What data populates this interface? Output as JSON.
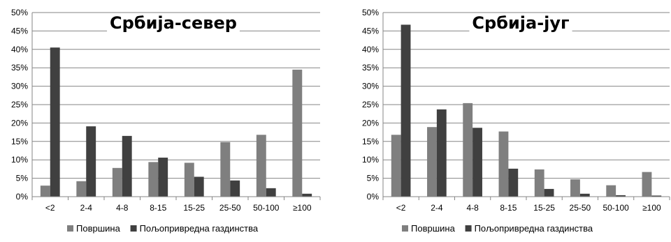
{
  "chart_data": [
    {
      "type": "bar",
      "title": "Србија-север",
      "categories": [
        "<2",
        "2-4",
        "4-8",
        "8-15",
        "15-25",
        "25-50",
        "50-100",
        "≥100"
      ],
      "series": [
        {
          "name": "Површина",
          "color": "#7f7f7f",
          "values": [
            3,
            4.2,
            7.8,
            9.4,
            9.2,
            14.8,
            16.8,
            34.5
          ]
        },
        {
          "name": "Пољопривредна газдинства",
          "color": "#404040",
          "values": [
            40.5,
            19.1,
            16.5,
            10.6,
            5.4,
            4.4,
            2.3,
            0.8
          ]
        }
      ],
      "ylim": [
        0,
        50
      ],
      "yticks": [
        "0%",
        "5%",
        "10%",
        "15%",
        "20%",
        "25%",
        "30%",
        "35%",
        "40%",
        "45%",
        "50%"
      ],
      "grid": true,
      "legend": "bottom"
    },
    {
      "type": "bar",
      "title": "Србија-југ",
      "categories": [
        "<2",
        "2-4",
        "4-8",
        "8-15",
        "15-25",
        "25-50",
        "50-100",
        "≥100"
      ],
      "series": [
        {
          "name": "Површина",
          "color": "#7f7f7f",
          "values": [
            16.8,
            18.9,
            25.4,
            17.7,
            7.4,
            4.7,
            3.1,
            6.7
          ]
        },
        {
          "name": "Пољопривредна газдинства",
          "color": "#404040",
          "values": [
            46.7,
            23.7,
            18.7,
            7.6,
            2.1,
            0.8,
            0.4,
            0.3
          ]
        }
      ],
      "ylim": [
        0,
        50
      ],
      "yticks": [
        "0%",
        "5%",
        "10%",
        "15%",
        "20%",
        "25%",
        "30%",
        "35%",
        "40%",
        "45%",
        "50%"
      ],
      "grid": true,
      "legend": "bottom"
    }
  ]
}
